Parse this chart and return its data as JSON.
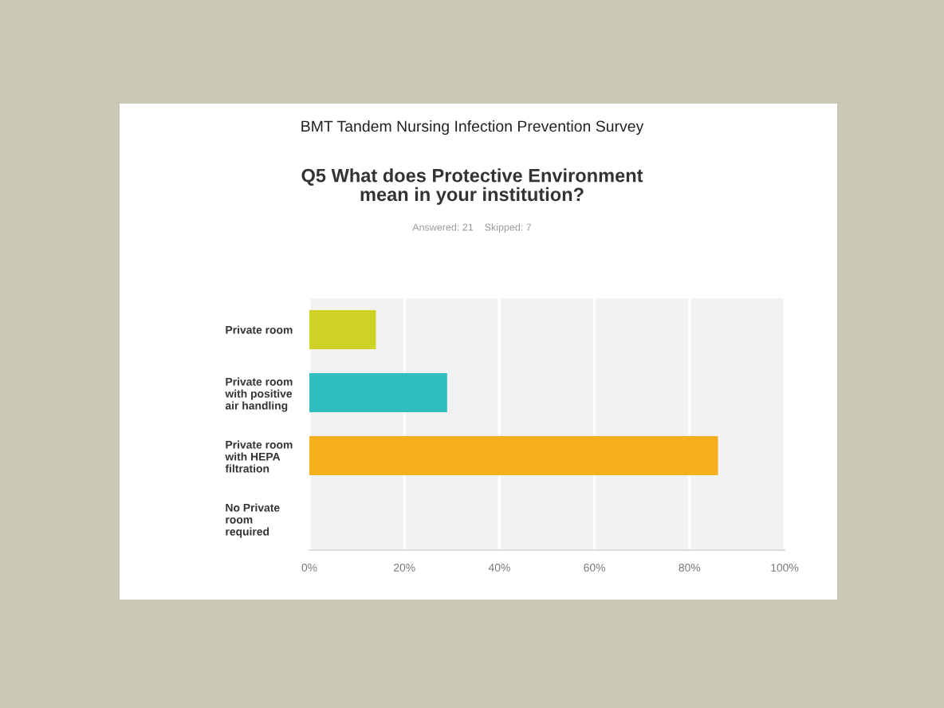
{
  "chart_data": {
    "type": "bar",
    "orientation": "horizontal",
    "title": "BMT Tandem Nursing Infection Prevention Survey",
    "subtitle": "Q5 What does Protective Environment\nmean in your institution?",
    "annotations": [
      "Answered: 21    Skipped: 7"
    ],
    "categories": [
      "Private room",
      "Private room\nwith positive\nair handling",
      "Private room\nwith HEPA\nfiltration",
      "No Private\nroom\nrequired"
    ],
    "values": [
      14,
      29,
      86,
      0
    ],
    "colors": [
      "#cdd225",
      "#2fbfc0",
      "#f5ae1c",
      "#999999"
    ],
    "xlim": [
      0,
      100
    ],
    "xticks": [
      {
        "value": 0,
        "label": "0%"
      },
      {
        "value": 20,
        "label": "20%"
      },
      {
        "value": 40,
        "label": "40%"
      },
      {
        "value": 60,
        "label": "60%"
      },
      {
        "value": 80,
        "label": "80%"
      },
      {
        "value": 100,
        "label": "100%"
      }
    ],
    "grid": "x",
    "legend": false
  }
}
